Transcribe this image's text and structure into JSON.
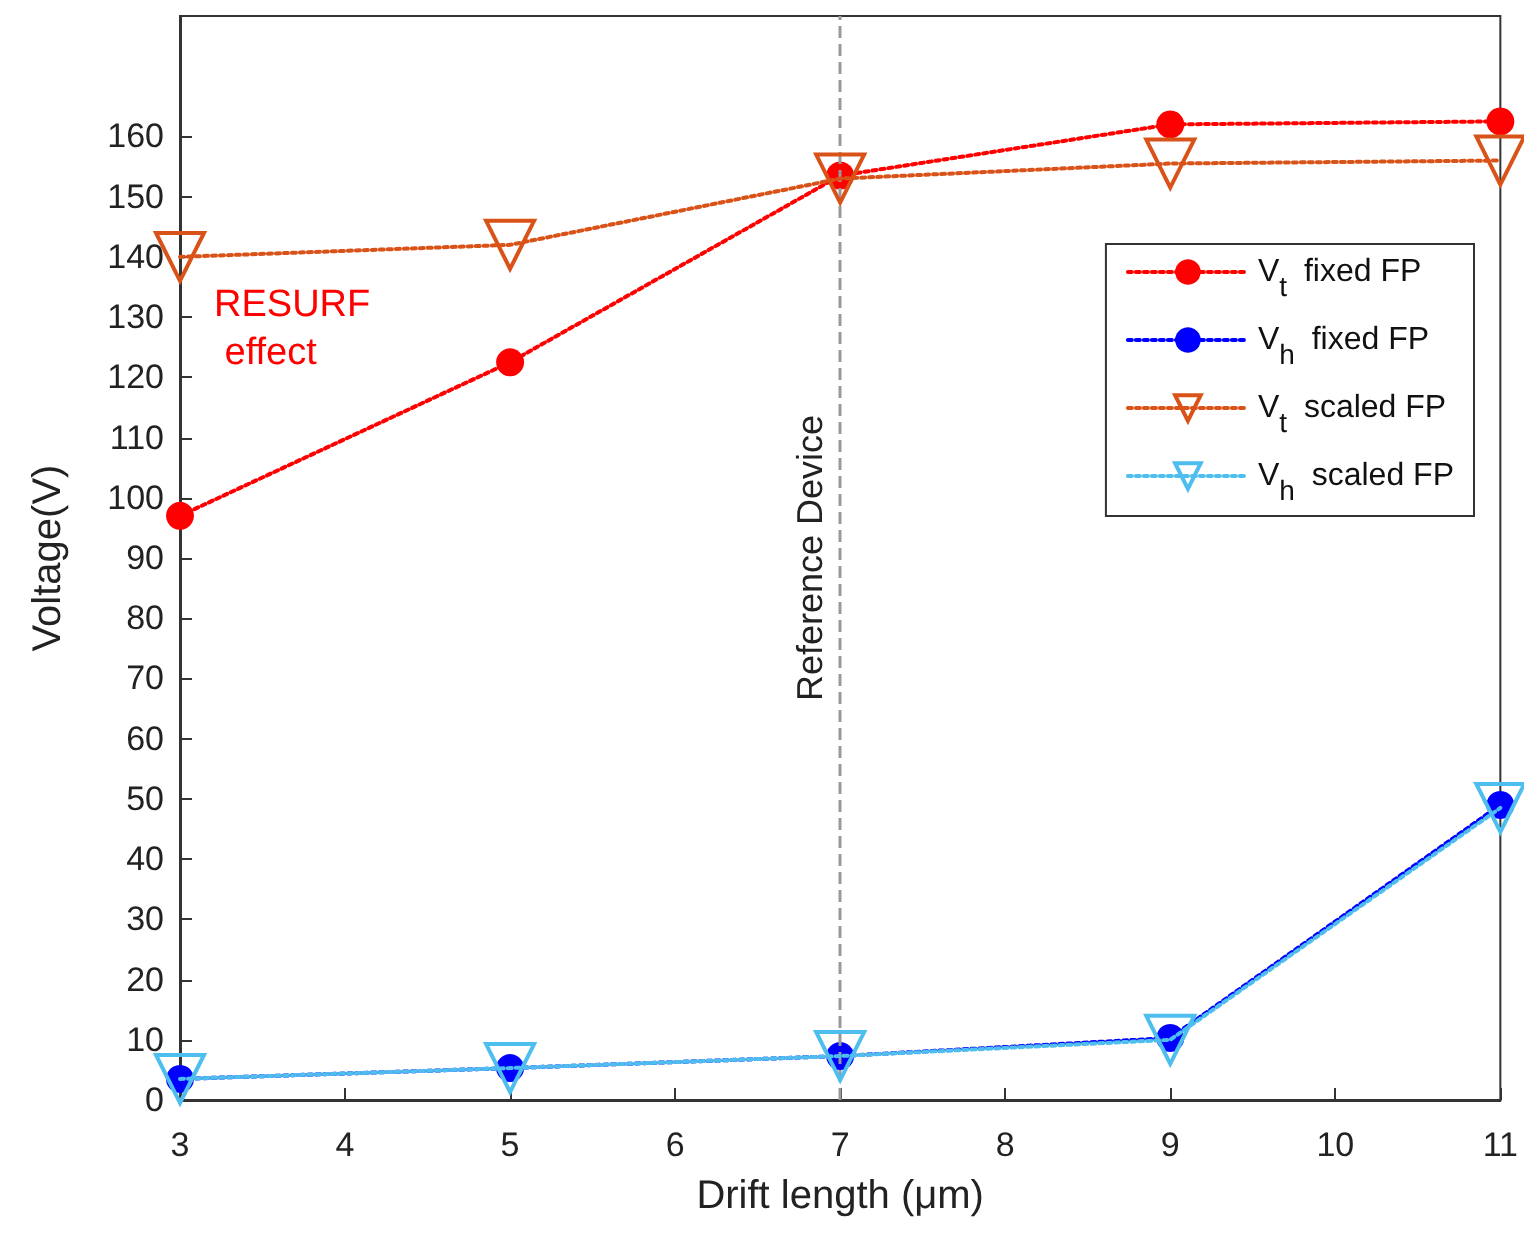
{
  "chart_data": {
    "type": "line",
    "xlabel": "Drift length (μm)",
    "ylabel": "Voltage(V)",
    "x": [
      3,
      5,
      7,
      9,
      11
    ],
    "series": [
      {
        "name": "V$_{t}$ fixed FP",
        "color": "#ff0000",
        "marker": "circle",
        "values": [
          97,
          122.5,
          153.5,
          162,
          162.5
        ]
      },
      {
        "name": "V$_{h}$ fixed FP",
        "color": "#0000ff",
        "marker": "circle",
        "values": [
          3.5,
          5.3,
          7.3,
          10.3,
          49
        ]
      },
      {
        "name": "V$_{t}$ scaled FP",
        "color": "#d95319",
        "marker": "triangle",
        "values": [
          140,
          142,
          153,
          155.5,
          156
        ]
      },
      {
        "name": "V$_{h}$ scaled FP",
        "color": "#4dbeee",
        "marker": "triangle",
        "values": [
          3.5,
          5.3,
          7.3,
          10,
          48.5
        ]
      }
    ],
    "xlim": [
      3,
      11
    ],
    "xticks": [
      3,
      4,
      5,
      6,
      7,
      8,
      9,
      10,
      11
    ],
    "ylim": [
      0,
      180
    ],
    "yticks": [
      0,
      10,
      20,
      30,
      40,
      50,
      60,
      70,
      80,
      90,
      100,
      110,
      120,
      130,
      140,
      150,
      160
    ],
    "ref_lines": [
      {
        "axis": "x",
        "value": 7,
        "label": "Reference Device",
        "color": "#999999",
        "line_style": "dashed"
      }
    ],
    "annotations": [
      {
        "text": "RESURF effect",
        "x": 3,
        "y": 140
      }
    ],
    "legend": "top right",
    "grid": false,
    "line_style": "dotted"
  }
}
